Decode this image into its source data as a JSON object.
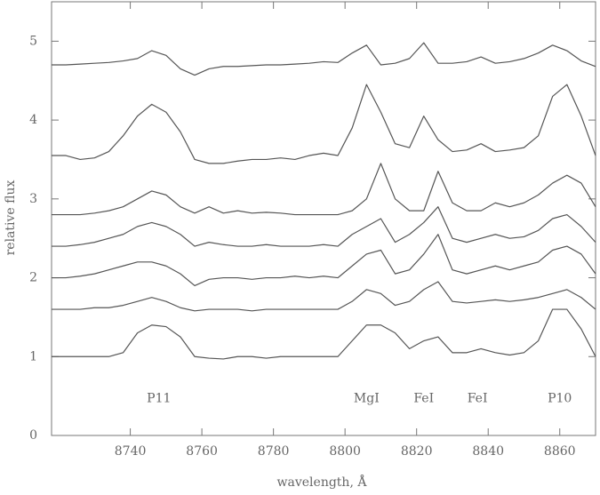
{
  "chart_data": {
    "type": "line",
    "xlabel": "wavelength, Å",
    "ylabel": "relative flux",
    "x": [
      8718,
      8722,
      8726,
      8730,
      8734,
      8738,
      8742,
      8746,
      8750,
      8754,
      8758,
      8762,
      8766,
      8770,
      8774,
      8778,
      8782,
      8786,
      8790,
      8794,
      8798,
      8802,
      8806,
      8810,
      8814,
      8818,
      8822,
      8826,
      8830,
      8834,
      8838,
      8842,
      8846,
      8850,
      8854,
      8858,
      8862,
      8866,
      8870
    ],
    "series": [
      {
        "color": "#555555",
        "values": [
          4.7,
          4.7,
          4.71,
          4.72,
          4.73,
          4.75,
          4.78,
          4.88,
          4.82,
          4.65,
          4.57,
          4.65,
          4.68,
          4.68,
          4.69,
          4.7,
          4.7,
          4.71,
          4.72,
          4.74,
          4.73,
          4.85,
          4.95,
          4.7,
          4.72,
          4.78,
          4.98,
          4.72,
          4.72,
          4.74,
          4.8,
          4.72,
          4.74,
          4.78,
          4.85,
          4.95,
          4.88,
          4.75,
          4.68
        ]
      },
      {
        "color": "#555555",
        "values": [
          3.55,
          3.55,
          3.5,
          3.52,
          3.6,
          3.8,
          4.05,
          4.2,
          4.1,
          3.85,
          3.5,
          3.45,
          3.45,
          3.48,
          3.5,
          3.5,
          3.52,
          3.5,
          3.55,
          3.58,
          3.55,
          3.9,
          4.45,
          4.1,
          3.7,
          3.65,
          4.05,
          3.75,
          3.6,
          3.62,
          3.7,
          3.6,
          3.62,
          3.65,
          3.8,
          4.3,
          4.45,
          4.05,
          3.55
        ]
      },
      {
        "color": "#555555",
        "values": [
          2.8,
          2.8,
          2.8,
          2.82,
          2.85,
          2.9,
          3.0,
          3.1,
          3.05,
          2.9,
          2.82,
          2.9,
          2.82,
          2.85,
          2.82,
          2.83,
          2.82,
          2.8,
          2.8,
          2.8,
          2.8,
          2.85,
          3.0,
          3.45,
          3.0,
          2.85,
          2.85,
          3.35,
          2.95,
          2.85,
          2.85,
          2.95,
          2.9,
          2.95,
          3.05,
          3.2,
          3.3,
          3.2,
          2.9
        ]
      },
      {
        "color": "#555555",
        "values": [
          2.4,
          2.4,
          2.42,
          2.45,
          2.5,
          2.55,
          2.65,
          2.7,
          2.65,
          2.55,
          2.4,
          2.45,
          2.42,
          2.4,
          2.4,
          2.42,
          2.4,
          2.4,
          2.4,
          2.42,
          2.4,
          2.55,
          2.65,
          2.75,
          2.45,
          2.55,
          2.7,
          2.9,
          2.5,
          2.45,
          2.5,
          2.55,
          2.5,
          2.52,
          2.6,
          2.75,
          2.8,
          2.65,
          2.45
        ]
      },
      {
        "color": "#555555",
        "values": [
          2.0,
          2.0,
          2.02,
          2.05,
          2.1,
          2.15,
          2.2,
          2.2,
          2.15,
          2.05,
          1.9,
          1.98,
          2.0,
          2.0,
          1.98,
          2.0,
          2.0,
          2.02,
          2.0,
          2.02,
          2.0,
          2.15,
          2.3,
          2.35,
          2.05,
          2.1,
          2.3,
          2.55,
          2.1,
          2.05,
          2.1,
          2.15,
          2.1,
          2.15,
          2.2,
          2.35,
          2.4,
          2.3,
          2.05
        ]
      },
      {
        "color": "#555555",
        "values": [
          1.6,
          1.6,
          1.6,
          1.62,
          1.62,
          1.65,
          1.7,
          1.75,
          1.7,
          1.62,
          1.58,
          1.6,
          1.6,
          1.6,
          1.58,
          1.6,
          1.6,
          1.6,
          1.6,
          1.6,
          1.6,
          1.7,
          1.85,
          1.8,
          1.65,
          1.7,
          1.85,
          1.95,
          1.7,
          1.68,
          1.7,
          1.72,
          1.7,
          1.72,
          1.75,
          1.8,
          1.85,
          1.75,
          1.6
        ]
      },
      {
        "color": "#555555",
        "values": [
          1.0,
          1.0,
          1.0,
          1.0,
          1.0,
          1.05,
          1.3,
          1.4,
          1.38,
          1.25,
          1.0,
          0.98,
          0.97,
          1.0,
          1.0,
          0.98,
          1.0,
          1.0,
          1.0,
          1.0,
          1.0,
          1.2,
          1.4,
          1.4,
          1.3,
          1.1,
          1.2,
          1.25,
          1.05,
          1.05,
          1.1,
          1.05,
          1.02,
          1.05,
          1.2,
          1.6,
          1.6,
          1.35,
          1.0
        ]
      }
    ],
    "annotations": [
      {
        "text": "P11",
        "x": 8748
      },
      {
        "text": "MgI",
        "x": 8806
      },
      {
        "text": "FeI",
        "x": 8822
      },
      {
        "text": "FeI",
        "x": 8837
      },
      {
        "text": "P10",
        "x": 8860
      }
    ],
    "xlim": [
      8718,
      8870
    ],
    "ylim": [
      0,
      5.5
    ],
    "xticks": [
      8740,
      8760,
      8780,
      8800,
      8820,
      8840,
      8860
    ],
    "yticks": [
      0,
      1,
      2,
      3,
      4,
      5
    ],
    "grid": false
  }
}
